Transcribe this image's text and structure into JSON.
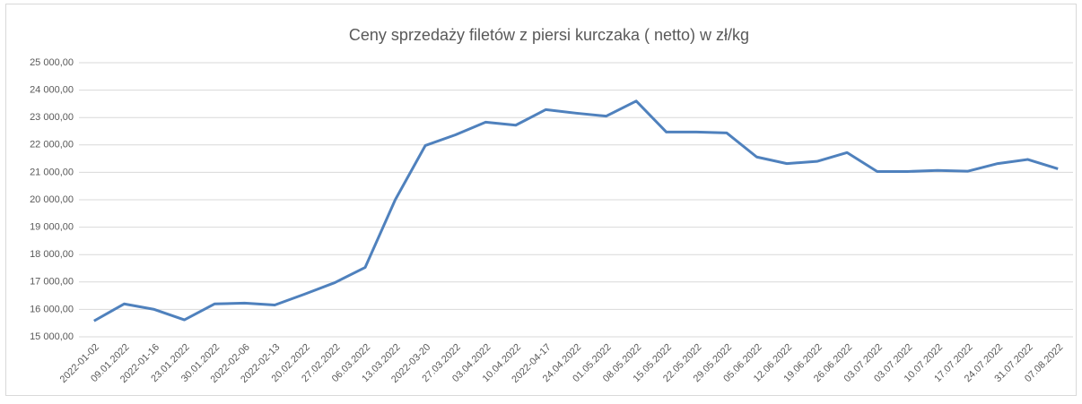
{
  "chart_data": {
    "type": "line",
    "title": "Ceny sprzedaży filetów z piersi kurczaka ( netto) w zł/kg",
    "categories": [
      "2022-01-02",
      "09.01.2022",
      "2022-01-16",
      "23.01.2022",
      "30.01.2022",
      "2022-02-06",
      "2022-02-13",
      "20.02.2022",
      "27.02.2022",
      "06.03.2022",
      "13.03.2022",
      "2022-03-20",
      "27.03.2022",
      "03.04.2022",
      "10.04.2022",
      "2022-04-17",
      "24.04.2022",
      "01.05.2022",
      "08.05.2022",
      "15.05.2022",
      "22.05.2022",
      "29.05.2022",
      "05.06.2022",
      "12.06.2022",
      "19.06.2022",
      "26.06.2022",
      "03.07.2022",
      "03.07.2022",
      "10.07.2022",
      "17.07.2022",
      "24.07.2022",
      "31.07.2022",
      "07.08.2022"
    ],
    "series": [
      {
        "color": "#4f81bd",
        "values": [
          15580,
          16200,
          16000,
          15620,
          16200,
          16230,
          16160,
          16560,
          16980,
          17530,
          20000,
          21980,
          22370,
          22830,
          22720,
          23290,
          23160,
          23050,
          23600,
          22470,
          22470,
          22440,
          21560,
          21320,
          21400,
          21720,
          21030,
          21030,
          21070,
          21040,
          21320,
          21470,
          21130
        ]
      }
    ],
    "ylim": [
      15000,
      25000
    ],
    "yticks": [
      {
        "value": 15000,
        "label": "15 000,00"
      },
      {
        "value": 16000,
        "label": "16 000,00"
      },
      {
        "value": 17000,
        "label": "17 000,00"
      },
      {
        "value": 18000,
        "label": "18 000,00"
      },
      {
        "value": 19000,
        "label": "19 000,00"
      },
      {
        "value": 20000,
        "label": "20 000,00"
      },
      {
        "value": 21000,
        "label": "21 000,00"
      },
      {
        "value": 22000,
        "label": "22 000,00"
      },
      {
        "value": 23000,
        "label": "23 000,00"
      },
      {
        "value": 24000,
        "label": "24 000,00"
      },
      {
        "value": 25000,
        "label": "25 000,00"
      }
    ],
    "grid": true
  }
}
